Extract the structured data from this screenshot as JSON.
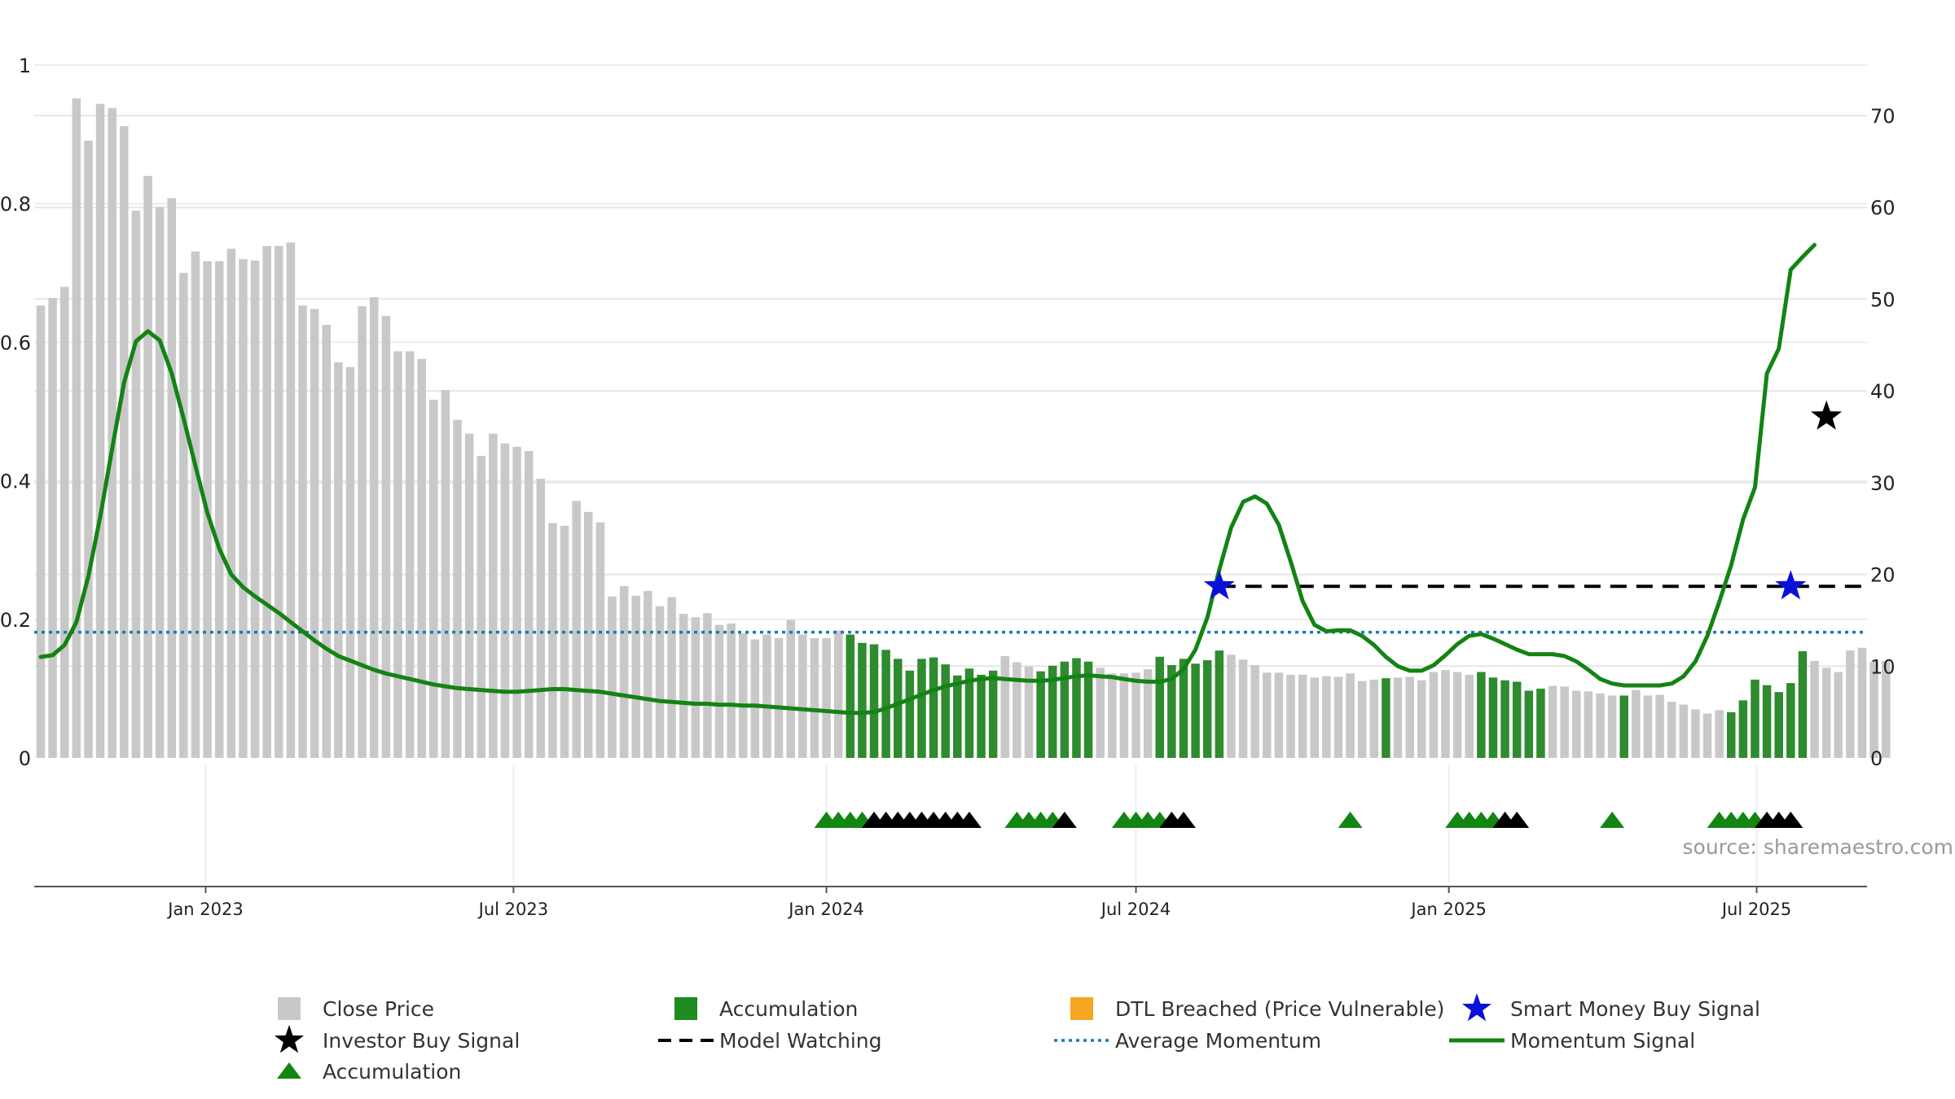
{
  "chart_data": {
    "type": "bar",
    "source": "source: sharemaestro.com",
    "left_axis": {
      "min": 0,
      "max": 1,
      "ticks": [
        0,
        0.2,
        0.4,
        0.6,
        0.8,
        1
      ],
      "tick_labels": [
        "0",
        "0.2",
        "0.4",
        "0.6",
        "0.8",
        "1"
      ]
    },
    "right_axis": {
      "min": 0,
      "max": 75.5,
      "ticks": [
        0,
        10,
        20,
        30,
        40,
        50,
        60,
        70
      ],
      "tick_labels": [
        "0",
        "10",
        "20",
        "30",
        "40",
        "50",
        "60",
        "70"
      ]
    },
    "x_axis": {
      "start": "2022-09-26",
      "end": "2025-09-01",
      "ticks": [
        {
          "date": "2023-01-01",
          "label": "Jan 2023"
        },
        {
          "date": "2023-07-01",
          "label": "Jul 2023"
        },
        {
          "date": "2024-01-01",
          "label": "Jan 2024"
        },
        {
          "date": "2024-07-01",
          "label": "Jul 2024"
        },
        {
          "date": "2025-01-01",
          "label": "Jan 2025"
        },
        {
          "date": "2025-07-01",
          "label": "Jul 2025"
        }
      ]
    },
    "grid": true,
    "colors": {
      "close_price": "#c8c8c8",
      "accumulation": "#2e8b2e",
      "momentum": "#138313",
      "average_momentum": "#1f77b4",
      "model_watching": "#000000",
      "smart_money": "#0a10d8",
      "investor_buy": "#000000",
      "dtl_breached": "#f5a623",
      "triangle_green": "#128512",
      "triangle_black": "#000000"
    },
    "close_price": {
      "start_date": "2022-09-26",
      "interval_days": 7,
      "values": [
        0.653,
        0.664,
        0.68,
        0.952,
        0.891,
        0.944,
        0.938,
        0.912,
        0.79,
        0.84,
        0.795,
        0.808,
        0.7,
        0.731,
        0.717,
        0.717,
        0.735,
        0.72,
        0.718,
        0.739,
        0.739,
        0.744,
        0.653,
        0.648,
        0.625,
        0.571,
        0.564,
        0.652,
        0.665,
        0.638,
        0.587,
        0.587,
        0.576,
        0.517,
        0.531,
        0.488,
        0.468,
        0.436,
        0.468,
        0.454,
        0.449,
        0.443,
        0.403,
        0.339,
        0.335,
        0.371,
        0.355,
        0.34,
        0.233,
        0.248,
        0.234,
        0.241,
        0.219,
        0.232,
        0.208,
        0.203,
        0.209,
        0.192,
        0.194,
        0.18,
        0.171,
        0.178,
        0.173,
        0.199,
        0.178,
        0.173,
        0.173,
        0.184,
        0.178,
        0.166,
        0.164,
        0.156,
        0.143,
        0.126,
        0.143,
        0.145,
        0.135,
        0.119,
        0.129,
        0.12,
        0.126,
        0.147,
        0.138,
        0.132,
        0.125,
        0.133,
        0.139,
        0.144,
        0.139,
        0.13,
        0.122,
        0.122,
        0.123,
        0.128,
        0.146,
        0.134,
        0.143,
        0.136,
        0.141,
        0.155,
        0.149,
        0.142,
        0.134,
        0.123,
        0.123,
        0.12,
        0.12,
        0.116,
        0.118,
        0.117,
        0.122,
        0.111,
        0.113,
        0.115,
        0.116,
        0.117,
        0.112,
        0.124,
        0.127,
        0.124,
        0.12,
        0.124,
        0.116,
        0.112,
        0.11,
        0.097,
        0.1,
        0.104,
        0.103,
        0.097,
        0.096,
        0.093,
        0.09,
        0.09,
        0.098,
        0.09,
        0.091,
        0.081,
        0.077,
        0.07,
        0.064,
        0.069,
        0.066,
        0.083,
        0.113,
        0.105,
        0.095,
        0.108,
        0.154,
        0.14,
        0.13,
        0.124,
        0.155,
        0.159,
        0.139,
        0.14
      ]
    },
    "accumulation_bar_indices": [
      68,
      69,
      70,
      71,
      72,
      73,
      74,
      75,
      76,
      77,
      78,
      79,
      80,
      84,
      85,
      86,
      87,
      88,
      94,
      95,
      96,
      97,
      98,
      99,
      113,
      121,
      122,
      123,
      124,
      125,
      126,
      133,
      142,
      143,
      144,
      145,
      146,
      147,
      148
    ],
    "momentum_signal": {
      "start_date": "2022-09-26",
      "interval_days": 7,
      "values": [
        11,
        11.2,
        12.3,
        14.8,
        19.8,
        26.3,
        33.7,
        40.9,
        45.4,
        46.5,
        45.5,
        41.9,
        37,
        31.8,
        26.7,
        22.8,
        20,
        18.6,
        17.6,
        16.7,
        15.8,
        14.8,
        13.8,
        12.8,
        11.9,
        11.1,
        10.6,
        10.1,
        9.6,
        9.2,
        8.9,
        8.6,
        8.3,
        8,
        7.8,
        7.6,
        7.5,
        7.4,
        7.3,
        7.2,
        7.2,
        7.3,
        7.4,
        7.5,
        7.5,
        7.4,
        7.3,
        7.2,
        7,
        6.8,
        6.6,
        6.4,
        6.2,
        6.1,
        6,
        5.9,
        5.9,
        5.8,
        5.8,
        5.7,
        5.7,
        5.6,
        5.5,
        5.4,
        5.3,
        5.2,
        5.1,
        5,
        4.9,
        4.9,
        5,
        5.4,
        5.9,
        6.4,
        6.9,
        7.4,
        7.8,
        8.1,
        8.4,
        8.6,
        8.7,
        8.6,
        8.5,
        8.4,
        8.4,
        8.5,
        8.7,
        8.9,
        9,
        8.9,
        8.8,
        8.6,
        8.4,
        8.3,
        8.3,
        8.6,
        9.7,
        11.8,
        15.3,
        20.5,
        25.1,
        27.9,
        28.5,
        27.7,
        25.4,
        21.4,
        17.1,
        14.5,
        13.8,
        13.9,
        13.9,
        13.3,
        12.3,
        11,
        10,
        9.5,
        9.5,
        10.1,
        11.2,
        12.4,
        13.3,
        13.5,
        13,
        12.4,
        11.8,
        11.3,
        11.3,
        11.3,
        11.1,
        10.5,
        9.6,
        8.6,
        8.1,
        7.9,
        7.9,
        7.9,
        7.9,
        8.1,
        8.9,
        10.5,
        13.3,
        17,
        21,
        26,
        29.5,
        41.9,
        44.6,
        53.2,
        54.6,
        55.9
      ]
    },
    "average_momentum": 13.7,
    "model_watching": {
      "value": 18.7,
      "start_date": "2024-08-19",
      "end_date": "2025-09-01"
    },
    "smart_money_buy_signals": [
      {
        "date": "2024-08-19",
        "value": 18.7
      },
      {
        "date": "2025-07-21",
        "value": 18.7
      }
    ],
    "investor_buy_signals": [
      {
        "date": "2025-08-11",
        "value": 37.2
      }
    ],
    "accumulation_triangles": [
      {
        "date": "2024-01-01",
        "color": "green"
      },
      {
        "date": "2024-01-08",
        "color": "green"
      },
      {
        "date": "2024-01-15",
        "color": "green"
      },
      {
        "date": "2024-01-22",
        "color": "green"
      },
      {
        "date": "2024-01-29",
        "color": "black"
      },
      {
        "date": "2024-02-05",
        "color": "black"
      },
      {
        "date": "2024-02-12",
        "color": "black"
      },
      {
        "date": "2024-02-19",
        "color": "black"
      },
      {
        "date": "2024-02-26",
        "color": "black"
      },
      {
        "date": "2024-03-04",
        "color": "black"
      },
      {
        "date": "2024-03-11",
        "color": "black"
      },
      {
        "date": "2024-03-18",
        "color": "black"
      },
      {
        "date": "2024-03-25",
        "color": "black"
      },
      {
        "date": "2024-04-22",
        "color": "green"
      },
      {
        "date": "2024-04-29",
        "color": "green"
      },
      {
        "date": "2024-05-06",
        "color": "green"
      },
      {
        "date": "2024-05-13",
        "color": "green"
      },
      {
        "date": "2024-05-20",
        "color": "black"
      },
      {
        "date": "2024-06-24",
        "color": "green"
      },
      {
        "date": "2024-07-01",
        "color": "green"
      },
      {
        "date": "2024-07-08",
        "color": "green"
      },
      {
        "date": "2024-07-15",
        "color": "green"
      },
      {
        "date": "2024-07-22",
        "color": "black"
      },
      {
        "date": "2024-07-29",
        "color": "black"
      },
      {
        "date": "2024-11-04",
        "color": "green"
      },
      {
        "date": "2025-01-06",
        "color": "green"
      },
      {
        "date": "2025-01-13",
        "color": "green"
      },
      {
        "date": "2025-01-20",
        "color": "green"
      },
      {
        "date": "2025-01-27",
        "color": "green"
      },
      {
        "date": "2025-02-03",
        "color": "black"
      },
      {
        "date": "2025-02-10",
        "color": "black"
      },
      {
        "date": "2025-04-07",
        "color": "green"
      },
      {
        "date": "2025-06-09",
        "color": "green"
      },
      {
        "date": "2025-06-16",
        "color": "green"
      },
      {
        "date": "2025-06-23",
        "color": "green"
      },
      {
        "date": "2025-06-30",
        "color": "green"
      },
      {
        "date": "2025-07-07",
        "color": "black"
      },
      {
        "date": "2025-07-14",
        "color": "black"
      },
      {
        "date": "2025-07-21",
        "color": "black"
      }
    ],
    "legend": {
      "placement": "bottom",
      "items": [
        {
          "label": "Close Price",
          "marker": "square",
          "color": "#c8c8c8"
        },
        {
          "label": "Accumulation",
          "marker": "square",
          "color": "#1e8c1e"
        },
        {
          "label": "DTL Breached (Price Vulnerable)",
          "marker": "square",
          "color": "#f5a623"
        },
        {
          "label": "Smart Money Buy Signal",
          "marker": "star",
          "color": "#0a10d8"
        },
        {
          "label": "Investor Buy Signal",
          "marker": "star",
          "color": "#000000"
        },
        {
          "label": "Model Watching",
          "marker": "dash",
          "color": "#000000"
        },
        {
          "label": "Average Momentum",
          "marker": "dot",
          "color": "#1f77b4"
        },
        {
          "label": "Momentum Signal",
          "marker": "line",
          "color": "#138313"
        },
        {
          "label": "Accumulation",
          "marker": "triangle",
          "color": "#128512"
        }
      ]
    }
  }
}
